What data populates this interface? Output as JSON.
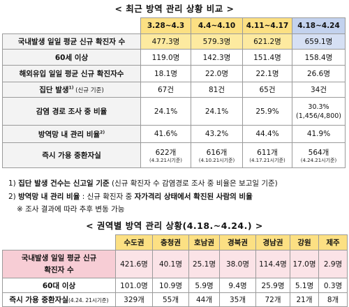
{
  "table1": {
    "title": "< 최근 방역 관리 상황 비교 >",
    "columns": [
      "3.28~4.3",
      "4.4~4.10",
      "4.11~4.17",
      "4.18~4.24"
    ],
    "rows": [
      {
        "label": "국내발생 일일 평균 신규 확진자 수",
        "values": [
          "477.3명",
          "579.3명",
          "621.2명",
          "659.1명"
        ]
      },
      {
        "label": "60세 이상",
        "values": [
          "119.0명",
          "142.3명",
          "151.4명",
          "158.4명"
        ]
      },
      {
        "label": "해외유입 일일 평균 신규 확진자수",
        "values": [
          "18.1명",
          "22.0명",
          "22.1명",
          "26.6명"
        ]
      },
      {
        "label": "집단 발생",
        "label_sup": "1)",
        "label_suffix": " (신규 기준)",
        "values": [
          "67건",
          "81건",
          "65건",
          "34건"
        ]
      },
      {
        "label": "감염 경로 조사 중 비율",
        "values": [
          "24.1%",
          "24.1%",
          "25.9%",
          "30.3%"
        ],
        "last_sub": "(1,456/4,800)"
      },
      {
        "label": "방역망 내 관리 비율",
        "label_sup": "2)",
        "values": [
          "41.6%",
          "43.2%",
          "44.4%",
          "41.9%"
        ]
      },
      {
        "label": "즉시 가용 중환자실",
        "values": [
          "622개",
          "616개",
          "611개",
          "564개"
        ],
        "subs": [
          "(4.3.21시기준)",
          "(4.10.21시기준)",
          "(4.17.21시기준)",
          "(4.24.21시기준)"
        ]
      }
    ]
  },
  "notes": [
    {
      "prefix": "1) ",
      "bold": "집단 발생 건수는 신고일 기준",
      "rest": " (신규 확진자 수 감염경로 조사 중 비율은 보고일 기준)"
    },
    {
      "prefix": "2) ",
      "bold": "방역망 내 관리 비율",
      "rest": " : 신규 확진자 중 ",
      "bold2": "자가격리 상태에서 확진된 사람의 비율"
    },
    {
      "prefix": "※ ",
      "bold": "",
      "rest": "조사 결과에 따라 추후 변동 가능"
    }
  ],
  "table2": {
    "title": "< 권역별 방역 관리 상황(4.18.~4.24.) >",
    "columns": [
      "수도권",
      "충청권",
      "호남권",
      "경북권",
      "경남권",
      "강원",
      "제주"
    ],
    "rows": [
      {
        "label": "국내발생 일일 평균 신규 확진자 수",
        "values": [
          "421.6명",
          "40.1명",
          "25.1명",
          "38.0명",
          "114.4명",
          "17.0명",
          "2.9명"
        ]
      },
      {
        "label": "60대 이상",
        "values": [
          "101.0명",
          "10.9명",
          "5.9명",
          "9.4명",
          "25.9명",
          "5.1명",
          "0.3명"
        ]
      },
      {
        "label": "즉시 가용 중환자실",
        "label_suffix": "(4.24. 21시기준)",
        "values": [
          "329개",
          "55개",
          "44개",
          "35개",
          "72개",
          "21개",
          "8개"
        ]
      }
    ]
  }
}
